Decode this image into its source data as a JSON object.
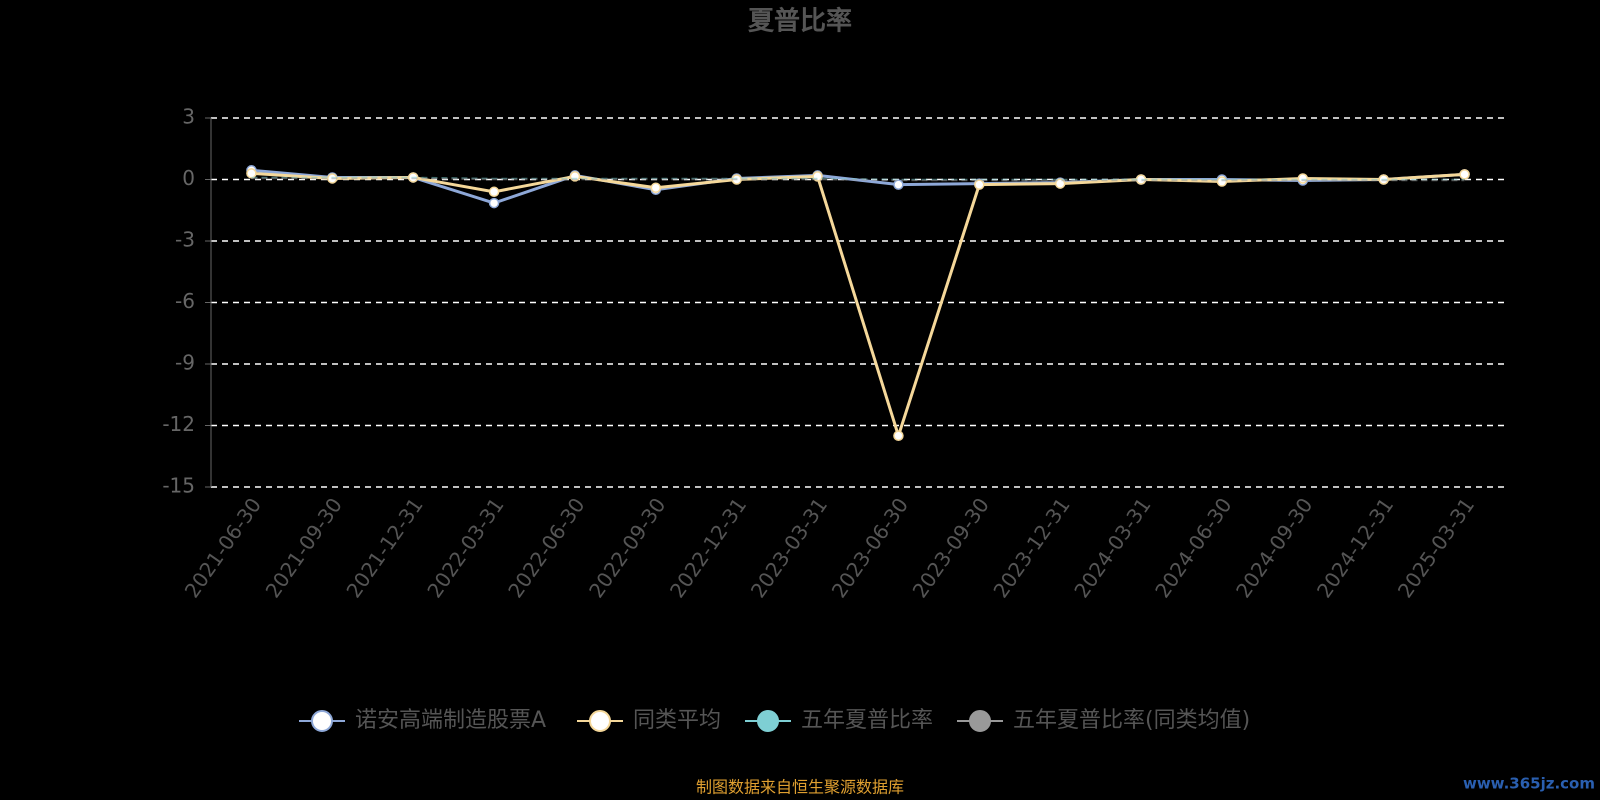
{
  "chart_data": {
    "type": "line",
    "title": "夏普比率",
    "categories": [
      "2021-06-30",
      "2021-09-30",
      "2021-12-31",
      "2022-03-31",
      "2022-06-30",
      "2022-09-30",
      "2022-12-31",
      "2023-03-31",
      "2023-06-30",
      "2023-09-30",
      "2023-12-31",
      "2024-03-31",
      "2024-06-30",
      "2024-09-30",
      "2024-12-31",
      "2025-03-31"
    ],
    "series": [
      {
        "name": "诺安高端制造股票A",
        "color": "#8ea8d8",
        "values": [
          0.45,
          0.1,
          0.1,
          -1.15,
          0.2,
          -0.5,
          0.05,
          0.2,
          -0.25,
          -0.2,
          -0.15,
          0.0,
          0.0,
          -0.05,
          0.0,
          0.25
        ]
      },
      {
        "name": "同类平均",
        "color": "#f5d89a",
        "values": [
          0.3,
          0.05,
          0.1,
          -0.6,
          0.15,
          -0.4,
          0.0,
          0.15,
          -12.5,
          -0.25,
          -0.2,
          0.0,
          -0.1,
          0.05,
          0.0,
          0.25
        ]
      },
      {
        "name": "五年夏普比率",
        "color": "#7ecfd4",
        "values": [
          0.1,
          0.1,
          0.1,
          0.05,
          0.05,
          0.05,
          0.05,
          0.05,
          0.0,
          0.0,
          0.0,
          0.0,
          0.0,
          0.0,
          0.0,
          0.0
        ]
      },
      {
        "name": "五年夏普比率(同类均值)",
        "color": "#999999",
        "values": [
          0.05,
          0.05,
          0.05,
          0.0,
          0.0,
          0.0,
          0.0,
          0.0,
          -0.05,
          -0.05,
          -0.05,
          -0.05,
          -0.05,
          -0.05,
          -0.05,
          -0.05
        ]
      }
    ],
    "ylim": [
      -15,
      3
    ],
    "yticks": [
      3,
      0,
      -3,
      -6,
      -9,
      -12,
      -15
    ],
    "grid": true,
    "footer": "制图数据来自恒生聚源数据库",
    "watermark": "www.365jz.com"
  }
}
